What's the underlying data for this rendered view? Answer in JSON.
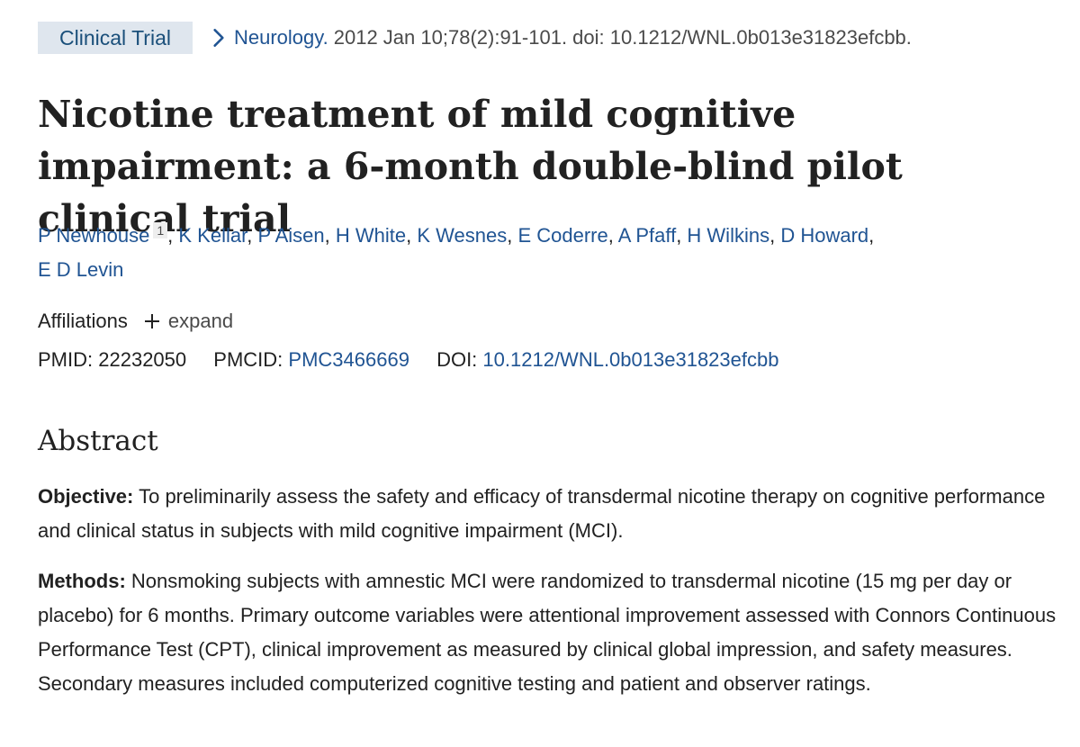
{
  "header": {
    "badge": "Clinical Trial",
    "journal": "Neurology.",
    "citation": "2012 Jan 10;78(2):91-101. doi: 10.1212/WNL.0b013e31823efcbb."
  },
  "title": "Nicotine treatment of mild cognitive impairment: a 6-month double-blind pilot clinical trial",
  "authors": {
    "first": "P Newhouse",
    "first_sup": "1",
    "rest_line1": [
      "K Kellar",
      "P Aisen",
      "H White",
      "K Wesnes",
      "E Coderre",
      "A Pfaff",
      "H Wilkins",
      "D Howard"
    ],
    "last": "E D Levin"
  },
  "affiliations": {
    "label": "Affiliations",
    "expand": "expand"
  },
  "identifiers": {
    "pmid_label": "PMID:",
    "pmid": "22232050",
    "pmcid_label": "PMCID:",
    "pmcid": "PMC3466669",
    "doi_label": "DOI:",
    "doi": "10.1212/WNL.0b013e31823efcbb"
  },
  "abstract": {
    "heading": "Abstract",
    "objective_label": "Objective:",
    "objective_text": "To preliminarily assess the safety and efficacy of transdermal nicotine therapy on cognitive performance and clinical status in subjects with mild cognitive impairment (MCI).",
    "methods_label": "Methods:",
    "methods_text": "Nonsmoking subjects with amnestic MCI were randomized to transdermal nicotine (15 mg per day or placebo) for 6 months. Primary outcome variables were attentional improvement assessed with Connors Continuous Performance Test (CPT), clinical improvement as measured by clinical global impression, and safety measures. Secondary measures included computerized cognitive testing and patient and observer ratings."
  },
  "colors": {
    "link": "#205493",
    "badge_bg": "#dfe6ee",
    "text": "#212121"
  },
  "icons": {
    "breadcrumb": "chevron-right-icon",
    "expand": "plus-icon"
  }
}
